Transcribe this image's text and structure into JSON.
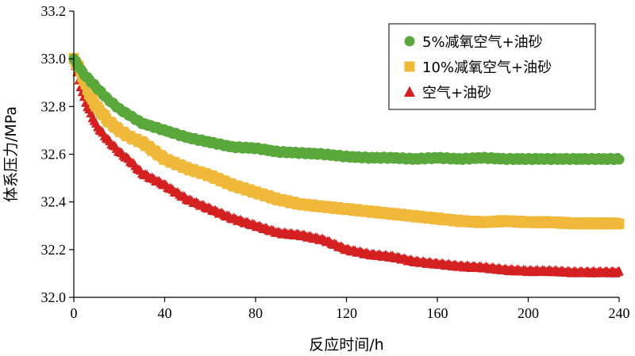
{
  "chart_data": {
    "type": "scatter",
    "xlabel": "反应时间/h",
    "ylabel": "体系压力/MPa",
    "xlim": [
      0,
      240
    ],
    "ylim": [
      32.0,
      33.2
    ],
    "xticks": [
      0,
      40,
      80,
      120,
      160,
      200,
      240
    ],
    "yticks": [
      32.0,
      32.2,
      32.4,
      32.6,
      32.8,
      33.0,
      33.2
    ],
    "ytick_labels": [
      "32.0",
      "32.2",
      "32.4",
      "32.6",
      "32.8",
      "33.0",
      "33.2"
    ],
    "grid": false,
    "legend_position": "top-right",
    "series": [
      {
        "name": "5%减氧空气+油砂",
        "marker": "circle",
        "color": "#5aa83c",
        "x": [
          0,
          2,
          4,
          6,
          8,
          10,
          15,
          20,
          25,
          30,
          40,
          50,
          60,
          70,
          80,
          90,
          100,
          110,
          120,
          130,
          140,
          150,
          160,
          170,
          180,
          190,
          200,
          210,
          220,
          230,
          240
        ],
        "y": [
          33.0,
          32.97,
          32.94,
          32.92,
          32.9,
          32.88,
          32.83,
          32.79,
          32.76,
          32.73,
          32.7,
          32.67,
          32.65,
          32.63,
          32.625,
          32.61,
          32.605,
          32.6,
          32.59,
          32.585,
          32.585,
          32.58,
          32.585,
          32.58,
          32.585,
          32.58,
          32.58,
          32.58,
          32.58,
          32.58,
          32.58
        ]
      },
      {
        "name": "10%减氧空气+油砂",
        "marker": "square",
        "color": "#f0b93a",
        "x": [
          0,
          2,
          4,
          6,
          8,
          10,
          15,
          20,
          25,
          30,
          40,
          50,
          60,
          70,
          80,
          90,
          100,
          110,
          120,
          130,
          140,
          150,
          160,
          170,
          180,
          190,
          200,
          210,
          220,
          230,
          240
        ],
        "y": [
          33.0,
          32.97,
          32.92,
          32.87,
          32.83,
          32.8,
          32.74,
          32.7,
          32.67,
          32.65,
          32.58,
          32.54,
          32.51,
          32.47,
          32.44,
          32.41,
          32.39,
          32.38,
          32.37,
          32.36,
          32.35,
          32.34,
          32.33,
          32.32,
          32.315,
          32.32,
          32.315,
          32.315,
          32.31,
          32.31,
          32.31
        ]
      },
      {
        "name": "空气+油砂",
        "marker": "triangle",
        "color": "#d42020",
        "x": [
          0,
          2,
          4,
          6,
          8,
          10,
          15,
          20,
          25,
          30,
          40,
          50,
          60,
          70,
          80,
          90,
          100,
          110,
          120,
          130,
          140,
          150,
          160,
          170,
          180,
          190,
          200,
          210,
          220,
          230,
          240
        ],
        "y": [
          33.0,
          32.92,
          32.85,
          32.8,
          32.76,
          32.72,
          32.66,
          32.61,
          32.57,
          32.52,
          32.47,
          32.41,
          32.37,
          32.33,
          32.3,
          32.27,
          32.26,
          32.24,
          32.2,
          32.18,
          32.17,
          32.15,
          32.14,
          32.13,
          32.125,
          32.115,
          32.11,
          32.11,
          32.105,
          32.105,
          32.105
        ]
      }
    ]
  }
}
